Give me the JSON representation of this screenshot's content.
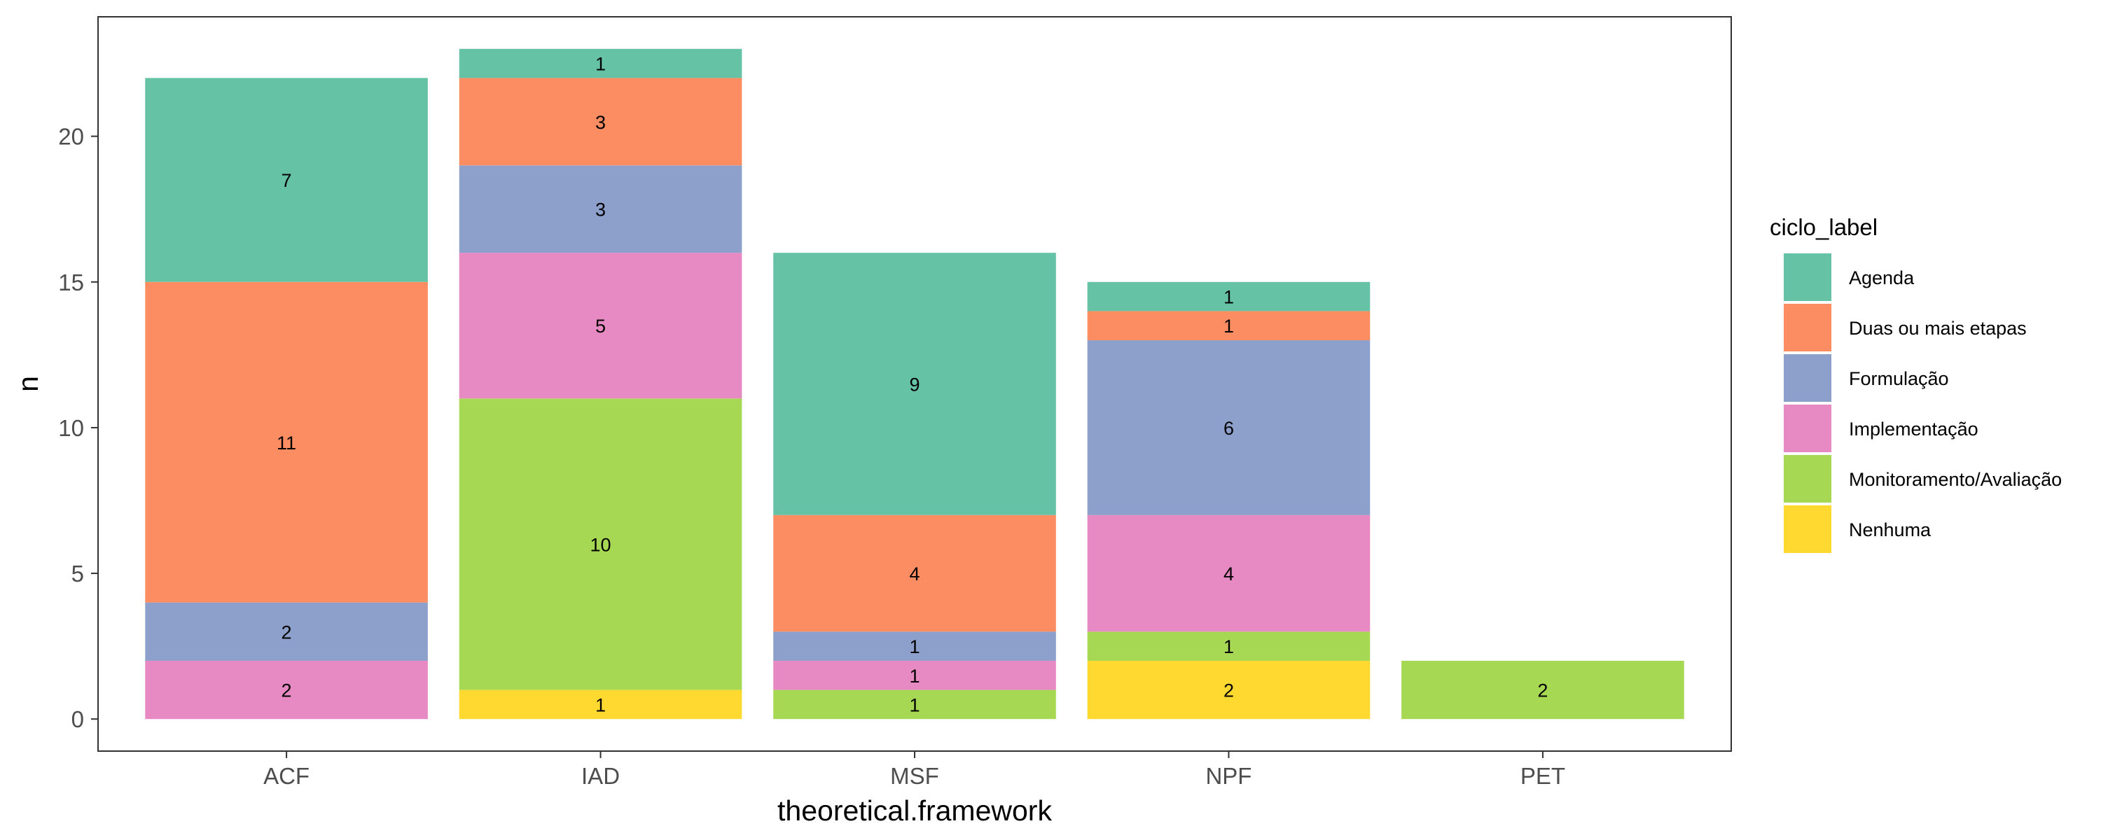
{
  "chart_data": {
    "type": "bar",
    "stacked": true,
    "categories": [
      "ACF",
      "IAD",
      "MSF",
      "NPF",
      "PET"
    ],
    "series": [
      {
        "name": "Agenda",
        "color": "#66c2a5",
        "values": [
          7,
          1,
          9,
          1,
          0
        ]
      },
      {
        "name": "Duas ou mais etapas",
        "color": "#fc8d62",
        "values": [
          11,
          3,
          4,
          1,
          0
        ]
      },
      {
        "name": "Formulação",
        "color": "#8da0cb",
        "values": [
          2,
          3,
          1,
          6,
          0
        ]
      },
      {
        "name": "Implementação",
        "color": "#e78ac3",
        "values": [
          2,
          5,
          1,
          4,
          0
        ]
      },
      {
        "name": "Monitoramento/Avaliação",
        "color": "#a6d854",
        "values": [
          0,
          10,
          1,
          1,
          2
        ]
      },
      {
        "name": "Nenhuma",
        "color": "#ffd92f",
        "values": [
          0,
          1,
          0,
          2,
          0
        ]
      }
    ],
    "stack_order": [
      "Nenhuma",
      "Monitoramento/Avaliação",
      "Implementação",
      "Formulação",
      "Duas ou mais etapas",
      "Agenda"
    ],
    "xlabel": "theoretical.framework",
    "ylabel": "n",
    "ylim": [
      -1.1,
      24.1
    ],
    "yticks": [
      0,
      5,
      10,
      15,
      20
    ],
    "legend_title": "ciclo_label",
    "legend_position": "right",
    "grid": false,
    "panel_border": true
  }
}
